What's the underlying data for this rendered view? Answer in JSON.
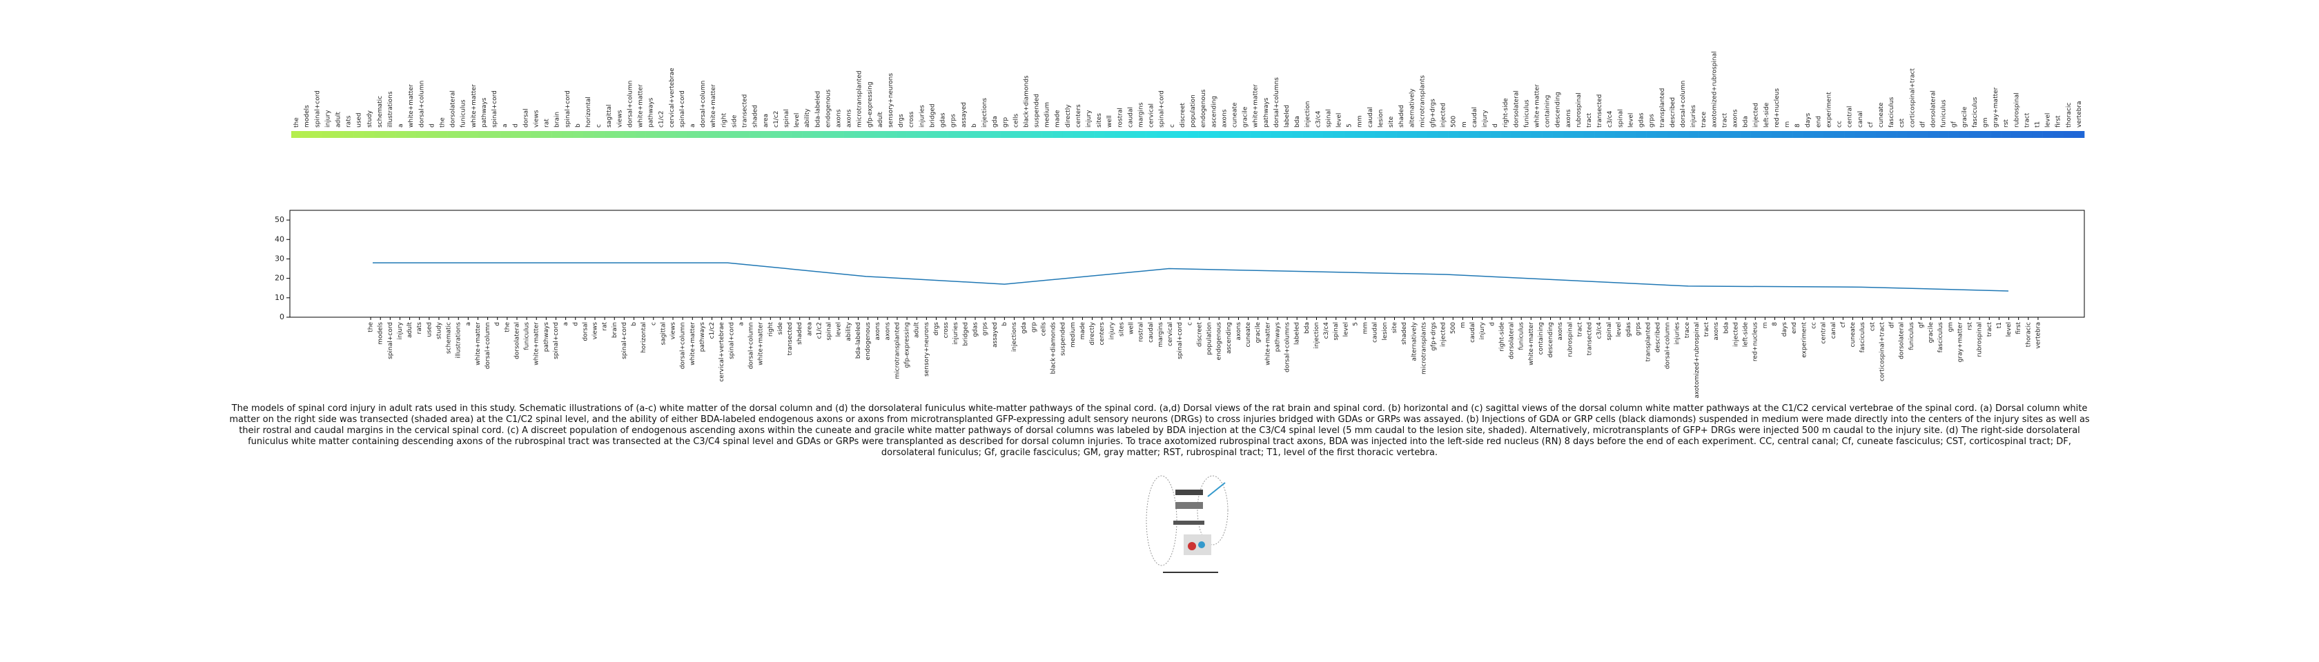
{
  "chart_data": {
    "type": "line",
    "tokens": [
      "the",
      "models",
      "spinal+cord",
      "injury",
      "adult",
      "rats",
      "used",
      "study",
      "schematic",
      "illustrations",
      "a",
      "white+matter",
      "dorsal+column",
      "d",
      "the",
      "dorsolateral",
      "funiculus",
      "white+matter",
      "pathways",
      "spinal+cord",
      "a",
      "d",
      "dorsal",
      "views",
      "rat",
      "brain",
      "spinal+cord",
      "b",
      "horizontal",
      "c",
      "sagittal",
      "views",
      "dorsal+column",
      "white+matter",
      "pathways",
      "c1/c2",
      "cervical+vertebrae",
      "spinal+cord",
      "a",
      "dorsal+column",
      "white+matter",
      "right",
      "side",
      "transected",
      "shaded",
      "area",
      "c1/c2",
      "spinal",
      "level",
      "ability",
      "bda-labeled",
      "endogenous",
      "axons",
      "axons",
      "microtransplanted",
      "gfp-expressing",
      "adult",
      "sensory+neurons",
      "drgs",
      "cross",
      "injuries",
      "bridged",
      "gdas",
      "grps",
      "assayed",
      "b",
      "injections",
      "gda",
      "grp",
      "cells",
      "black+diamonds",
      "suspended",
      "medium",
      "made",
      "directly",
      "centers",
      "injury",
      "sites",
      "well",
      "rostral",
      "caudal",
      "margins",
      "cervical",
      "spinal+cord",
      "c",
      "discreet",
      "population",
      "endogenous",
      "ascending",
      "axons",
      "cuneate",
      "gracile",
      "white+matter",
      "pathways",
      "dorsal+columns",
      "labeled",
      "bda",
      "injection",
      "c3/c4",
      "spinal",
      "level",
      "5",
      "mm",
      "caudal",
      "lesion",
      "site",
      "shaded",
      "alternatively",
      "microtransplants",
      "gfp+drgs",
      "injected",
      "500",
      "m",
      "caudal",
      "injury",
      "d",
      "right-side",
      "dorsolateral",
      "funiculus",
      "white+matter",
      "containing",
      "descending",
      "axons",
      "rubrospinal",
      "tract",
      "transected",
      "c3/c4",
      "spinal",
      "level",
      "gdas",
      "grps",
      "transplanted",
      "described",
      "dorsal+column",
      "injuries",
      "trace",
      "axotomized+rubrospinal",
      "tract",
      "axons",
      "bda",
      "injected",
      "left-side",
      "red+nucleus",
      "rn",
      "8",
      "days",
      "end",
      "experiment",
      "cc",
      "central",
      "canal",
      "cf",
      "cuneate",
      "fasciculus",
      "cst",
      "corticospinal+tract",
      "df",
      "dorsolateral",
      "funiculus",
      "gf",
      "gracile",
      "fasciculus",
      "gm",
      "gray+matter",
      "rst",
      "rubrospinal",
      "tract",
      "t1",
      "level",
      "first",
      "thoracic",
      "vertebra"
    ],
    "colormap": [
      "#b5ee4e",
      "#22dde6",
      "#1f66d6"
    ],
    "x": [
      0,
      24,
      41,
      57,
      73,
      92,
      124,
      152,
      172,
      189
    ],
    "values": [
      28,
      28,
      28,
      21,
      17,
      25,
      22,
      16,
      15.5,
      13.5
    ],
    "color": "#1f77b4",
    "xlim": [
      0,
      189
    ],
    "ylim": [
      0,
      55
    ],
    "yticks": [
      0,
      10,
      20,
      30,
      40,
      50
    ],
    "caption": "The models of spinal cord injury in adult rats used in this study. Schematic illustrations of (a-c) white matter of the dorsal column and (d) the dorsolateral funiculus white-matter pathways of the spinal cord. (a,d) Dorsal views of the rat brain and spinal cord. (b) horizontal and (c) sagittal views of the dorsal column white matter pathways at the C1/C2 cervical vertebrae of the spinal cord. (a) Dorsal column white matter on the right side was transected (shaded area) at the C1/C2 spinal level, and the ability of either BDA-labeled endogenous axons or axons from microtransplanted GFP-expressing adult sensory neurons (DRGs) to cross injuries bridged with GDAs or GRPs was assayed. (b) Injections of GDA or GRP cells (black diamonds) suspended in medium were made directly into the centers of the injury sites as well as their rostral and caudal margins in the cervical spinal cord. (c) A discreet population of endogenous ascending axons within the cuneate and gracile white matter pathways of dorsal columns was labeled by BDA injection at the C3/C4 spinal level (5 mm caudal to the lesion site, shaded). Alternatively, microtransplants of GFP+ DRGs were injected 500 m caudal to the injury site. (d) The right-side dorsolateral funiculus white matter containing descending axons of the rubrospinal tract was transected at the C3/C4 spinal level and GDAs or GRPs were transplanted as described for dorsal column injuries. To trace axotomized rubrospinal tract axons, BDA was injected into the left-side red nucleus (RN) 8 days before the end of each experiment. CC, central canal; Cf, cuneate fasciculus; CST, corticospinal tract; DF, dorsolateral funiculus; Gf, gracile fasciculus; GM, gray matter; RST, rubrospinal tract; T1, level of the first thoracic vertebra."
  }
}
